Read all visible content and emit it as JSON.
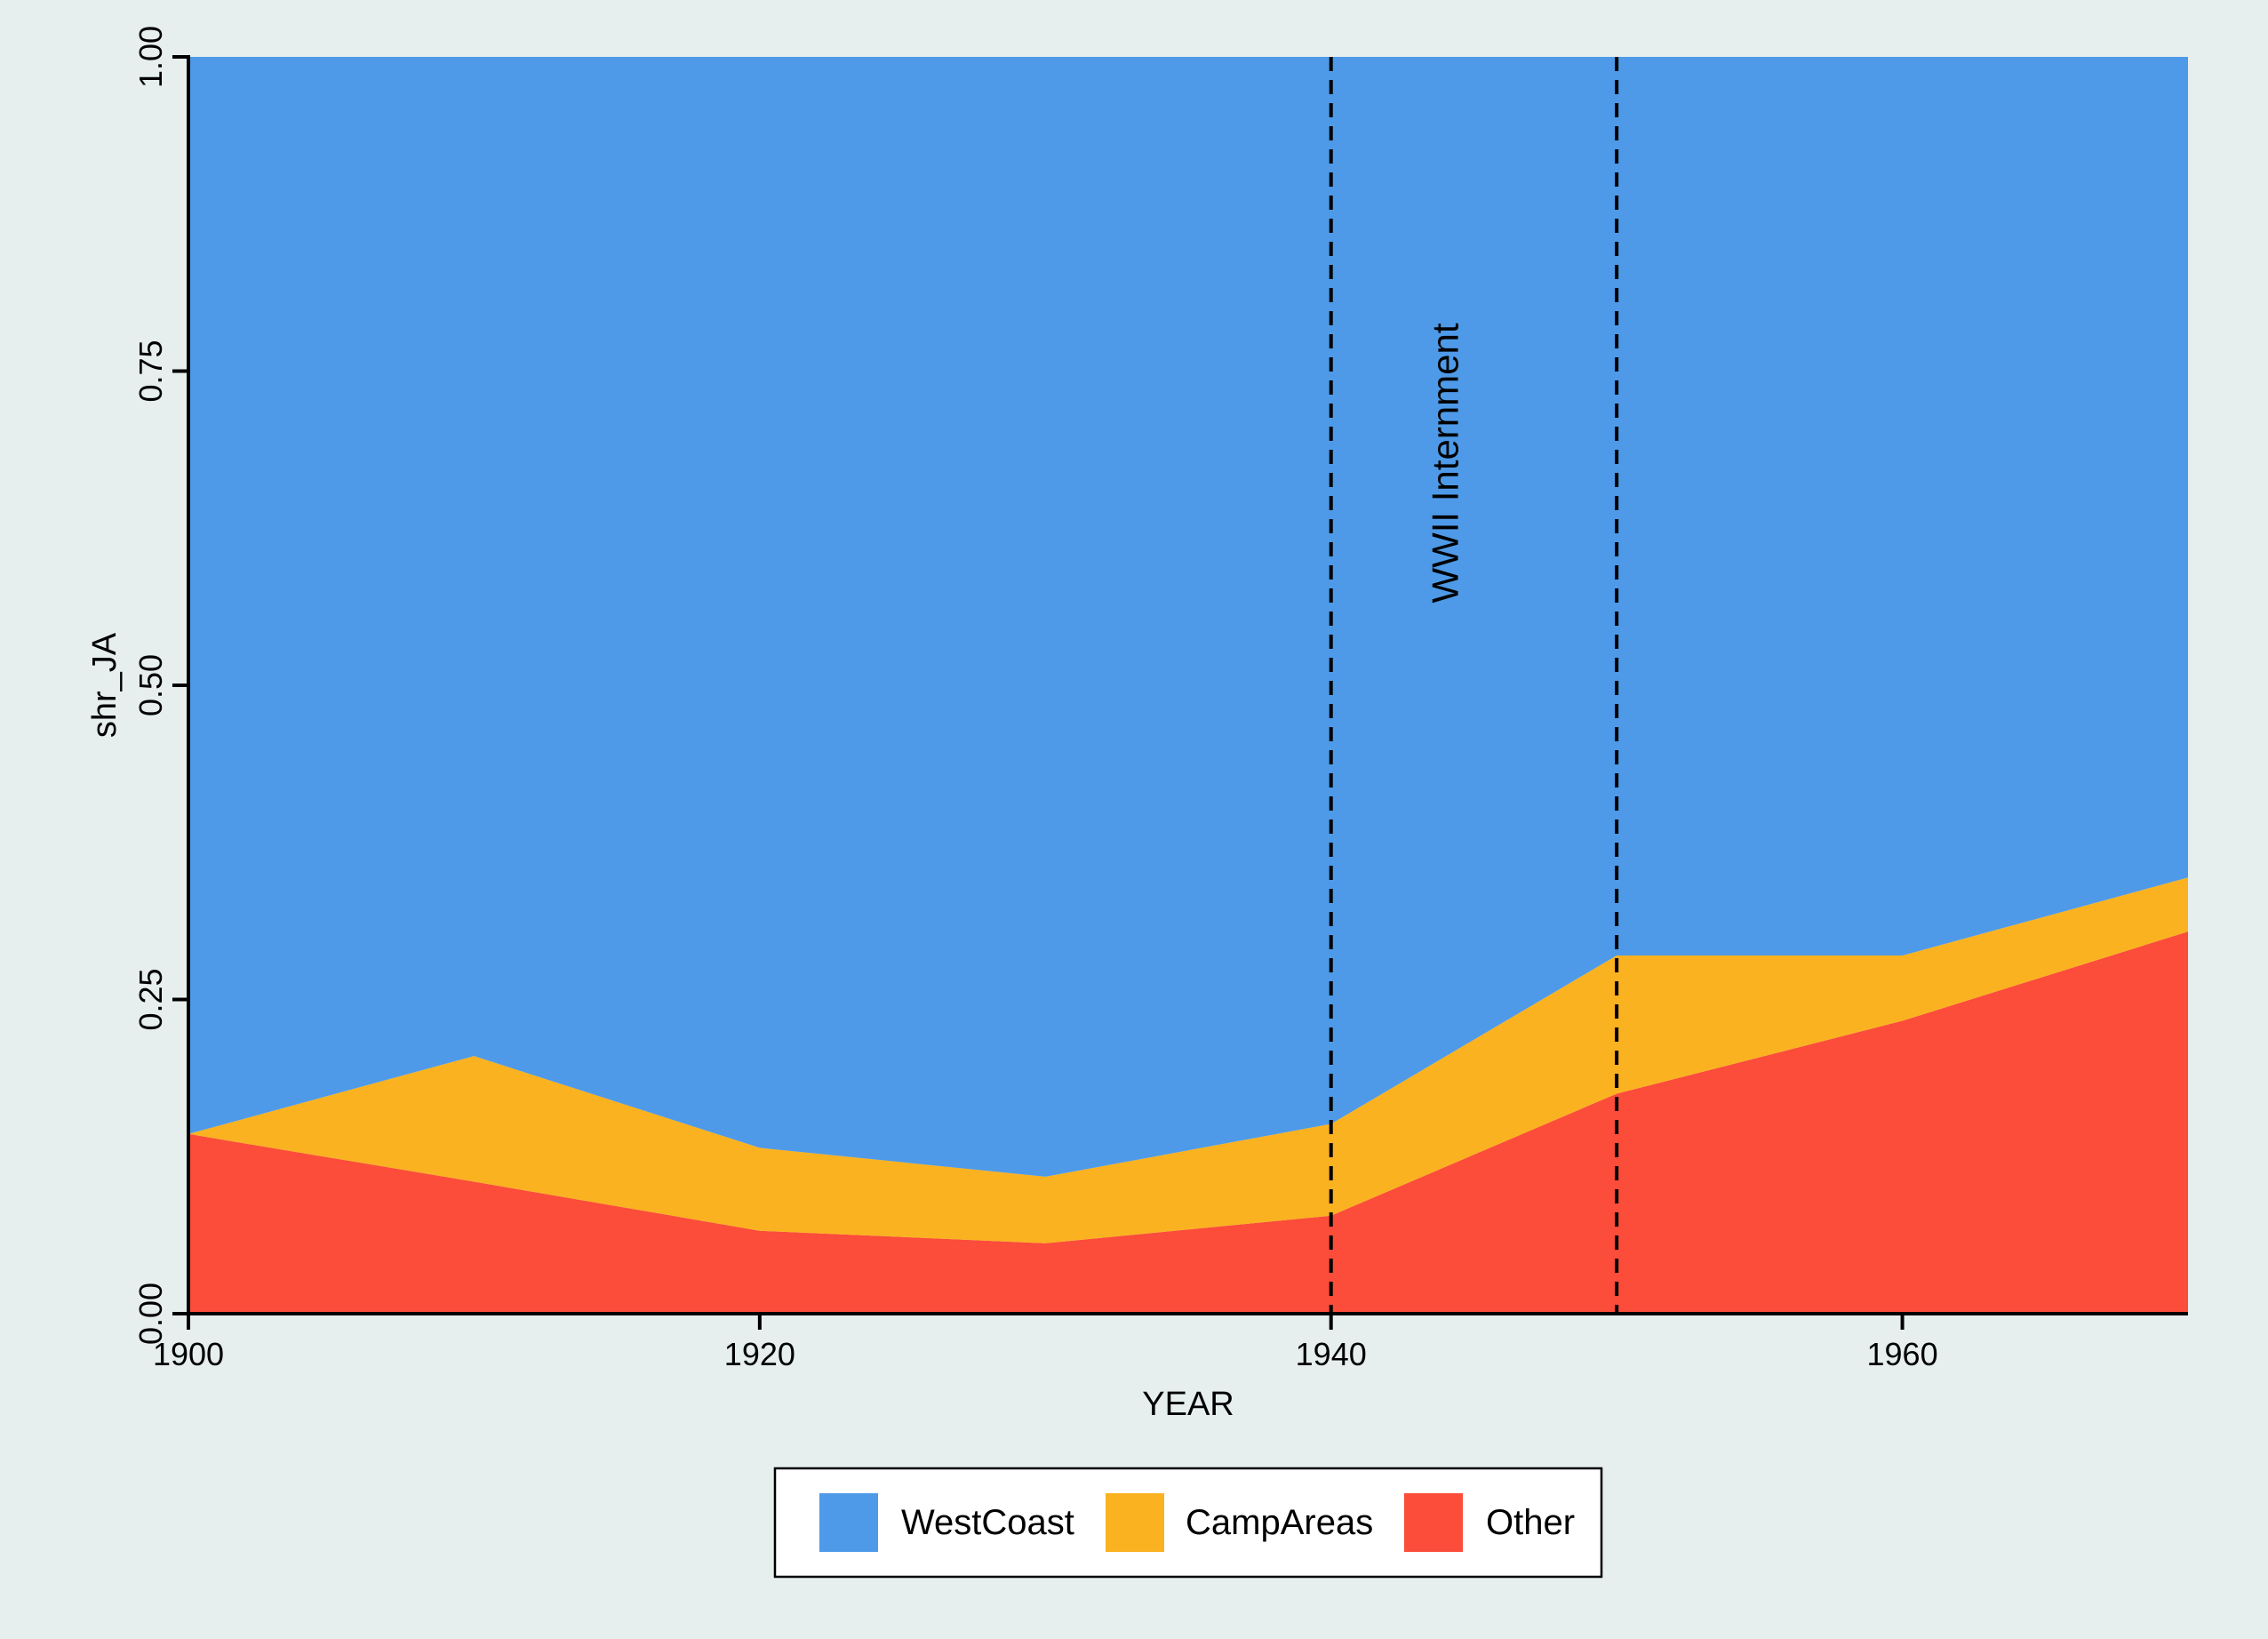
{
  "chart_data": {
    "type": "area",
    "stacked": true,
    "normalized": true,
    "x": [
      1900,
      1910,
      1920,
      1930,
      1940,
      1950,
      1960,
      1970
    ],
    "series": [
      {
        "name": "Other",
        "color": "#fc4c3a",
        "values": [
          0.143,
          0.105,
          0.066,
          0.056,
          0.078,
          0.175,
          0.233,
          0.304
        ]
      },
      {
        "name": "CampAreas",
        "color": "#fbb220",
        "values": [
          0.0,
          0.1,
          0.066,
          0.053,
          0.073,
          0.11,
          0.052,
          0.043
        ]
      },
      {
        "name": "WestCoast",
        "color": "#4e9ae8",
        "values": [
          0.857,
          0.795,
          0.868,
          0.891,
          0.849,
          0.715,
          0.715,
          0.653
        ]
      }
    ],
    "xlabel": "YEAR",
    "ylabel": "shr_JA",
    "xlim": [
      1900,
      1970
    ],
    "ylim": [
      0,
      1
    ],
    "x_ticks": [
      "1900",
      "1920",
      "1940",
      "1960"
    ],
    "y_ticks": [
      "0.00",
      "0.25",
      "0.50",
      "0.75",
      "1.00"
    ],
    "vlines": [
      1940,
      1950
    ],
    "annotation": {
      "text": "WWII Internment",
      "x": 1944,
      "y": 0.5
    },
    "legend": {
      "placement": "bottom",
      "entries": [
        {
          "label": "WestCoast",
          "color": "#4e9ae8"
        },
        {
          "label": "CampAreas",
          "color": "#fbb220"
        },
        {
          "label": "Other",
          "color": "#fc4c3a"
        }
      ]
    },
    "background": "#e6eeee"
  }
}
